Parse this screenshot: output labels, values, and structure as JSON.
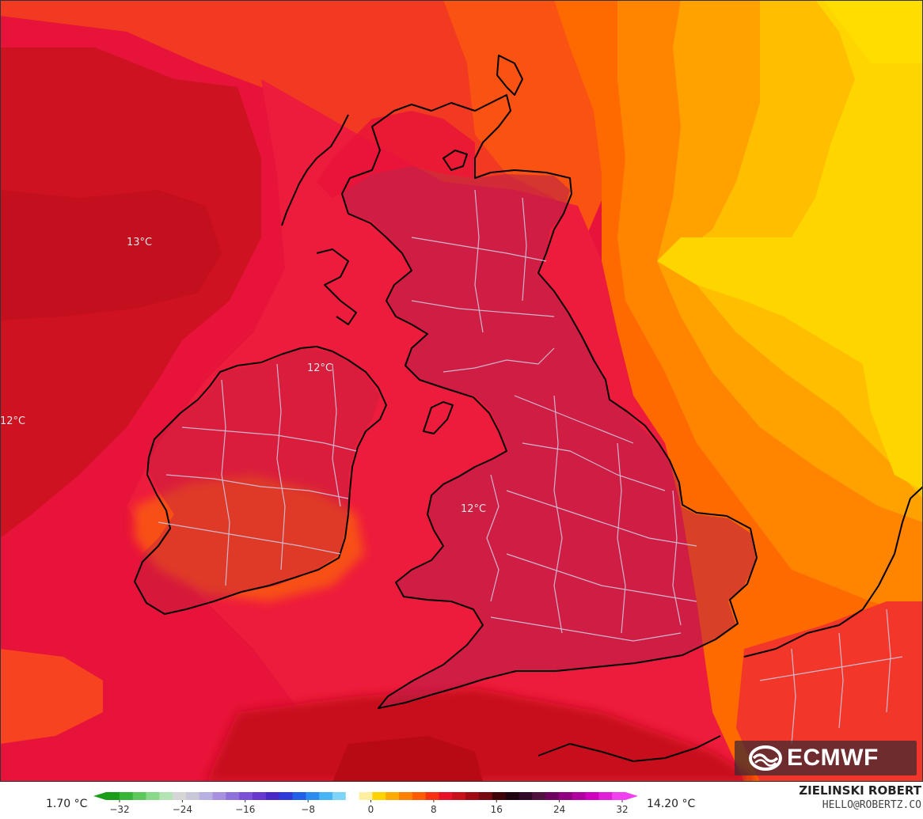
{
  "map": {
    "contour_labels": [
      {
        "id": "atlantic-west",
        "text": "13°C"
      },
      {
        "id": "northern-ireland",
        "text": "12°C"
      },
      {
        "id": "west-edge",
        "text": "12°C"
      },
      {
        "id": "wales",
        "text": "12°C"
      }
    ]
  },
  "logo": {
    "text": "ECMWF"
  },
  "colorbar": {
    "min_label": "1.70 °C",
    "max_label": "14.20 °C",
    "ticks": [
      "−32",
      "−24",
      "−16",
      "−8",
      "0",
      "8",
      "16",
      "24",
      "32"
    ]
  },
  "credit": {
    "name": "ZIELINSKI ROBERT",
    "email": "HELLO@ROBERTZ.CO"
  },
  "colors": {
    "dark_red": "#c8101c",
    "crimson": "#e8133a",
    "red_orange": "#f53a1a",
    "orange": "#ff6a00",
    "amber": "#ffa000",
    "yellow": "#ffd500",
    "land_overlay": "#b41e46",
    "coastline": "#000000",
    "boundaries": "#cfcfe6"
  }
}
